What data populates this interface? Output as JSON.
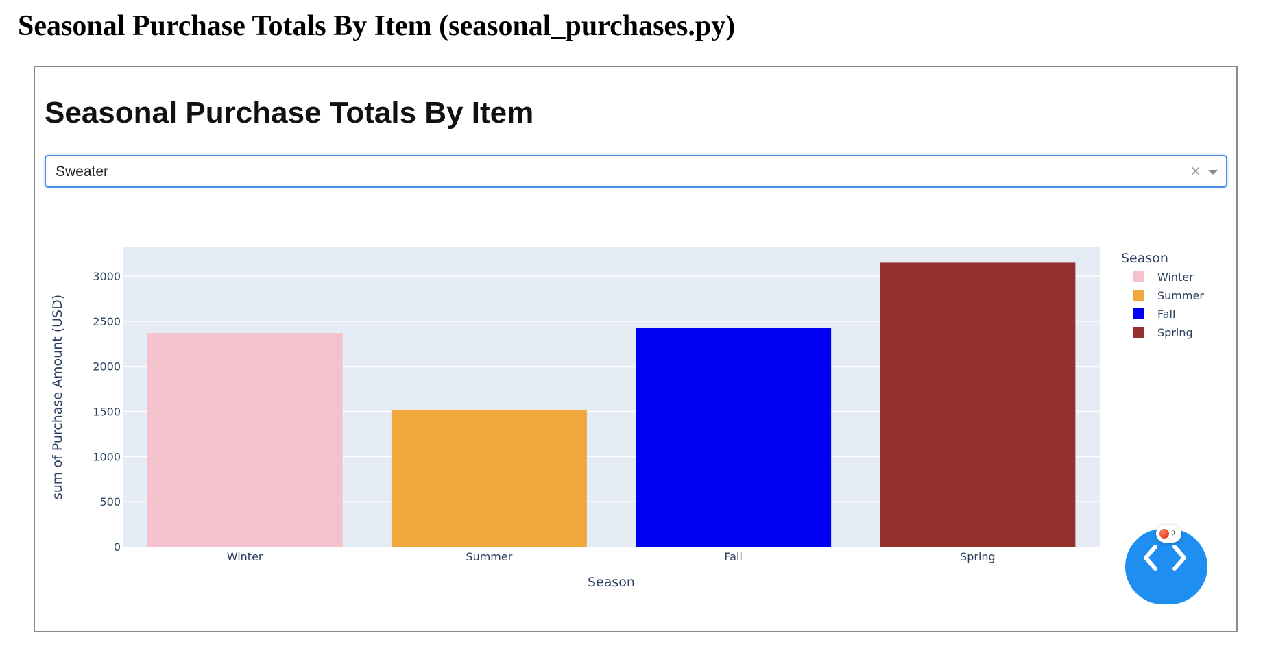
{
  "page": {
    "heading": "Seasonal Purchase Totals By Item (seasonal_purchases.py)"
  },
  "app": {
    "title": "Seasonal Purchase Totals By Item",
    "dropdown": {
      "value": "Sweater",
      "clear_glyph": "×"
    },
    "debug_menu": {
      "error_count": "2",
      "icon": "code-chevrons-icon"
    }
  },
  "chart_data": {
    "type": "bar",
    "categories": [
      "Winter",
      "Summer",
      "Fall",
      "Spring"
    ],
    "values": [
      2370,
      1520,
      2430,
      3150
    ],
    "colors": [
      "#f4c2cd",
      "#f0a83c",
      "#0000f5",
      "#96302e"
    ],
    "xlabel": "Season",
    "ylabel": "sum of Purchase Amount (USD)",
    "ylim": [
      0,
      3320
    ],
    "yticks": [
      0,
      500,
      1000,
      1500,
      2000,
      2500,
      3000
    ],
    "grid": true,
    "plot_background": "#e5ecf6",
    "legend": {
      "title": "Season",
      "placement": "right",
      "entries": [
        "Winter",
        "Summer",
        "Fall",
        "Spring"
      ]
    }
  }
}
